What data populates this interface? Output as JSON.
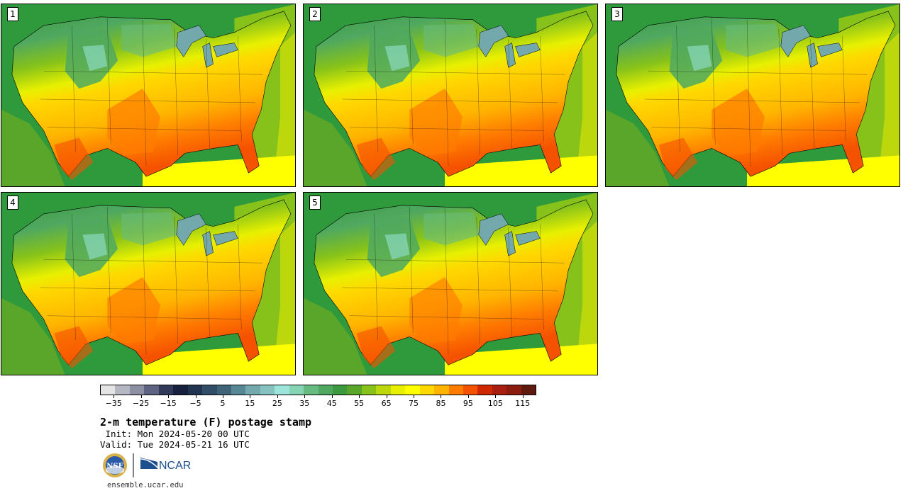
{
  "panels": [
    {
      "label": "1",
      "warmth": 0.55
    },
    {
      "label": "2",
      "warmth": 0.45
    },
    {
      "label": "3",
      "warmth": 0.6
    },
    {
      "label": "4",
      "warmth": 0.5
    },
    {
      "label": "5",
      "warmth": 0.35
    }
  ],
  "colorbar": {
    "colors": [
      "#e4e4e4",
      "#b5b7c2",
      "#8d90a3",
      "#5d6380",
      "#313a59",
      "#17213d",
      "#223550",
      "#324d68",
      "#3f6478",
      "#578795",
      "#73a9ad",
      "#86c3c0",
      "#9de5da",
      "#86d4b4",
      "#67bb80",
      "#4fa860",
      "#3c9940",
      "#5aa62a",
      "#86c21a",
      "#bcd80c",
      "#e8f000",
      "#ffff00",
      "#ffd800",
      "#ffb500",
      "#ff7c00",
      "#f55200",
      "#cf2800",
      "#a81e10",
      "#8a1c10",
      "#5f1a0e"
    ],
    "ticks": [
      "-35",
      "-25",
      "-15",
      "-5",
      "5",
      "15",
      "25",
      "35",
      "45",
      "55",
      "65",
      "75",
      "85",
      "95",
      "105",
      "115"
    ],
    "tick_values": [
      -35,
      -25,
      -15,
      -5,
      5,
      15,
      25,
      35,
      45,
      55,
      65,
      75,
      85,
      95,
      105,
      115
    ],
    "min": -40,
    "max": 120
  },
  "title": "2-m temperature (F) postage stamp",
  "init": " Init: Mon 2024-05-20 00 UTC",
  "valid": "Valid: Tue 2024-05-21 16 UTC",
  "logos": {
    "nsf": "NSF",
    "ncar": "NCAR"
  },
  "site": "ensemble.ucar.edu"
}
